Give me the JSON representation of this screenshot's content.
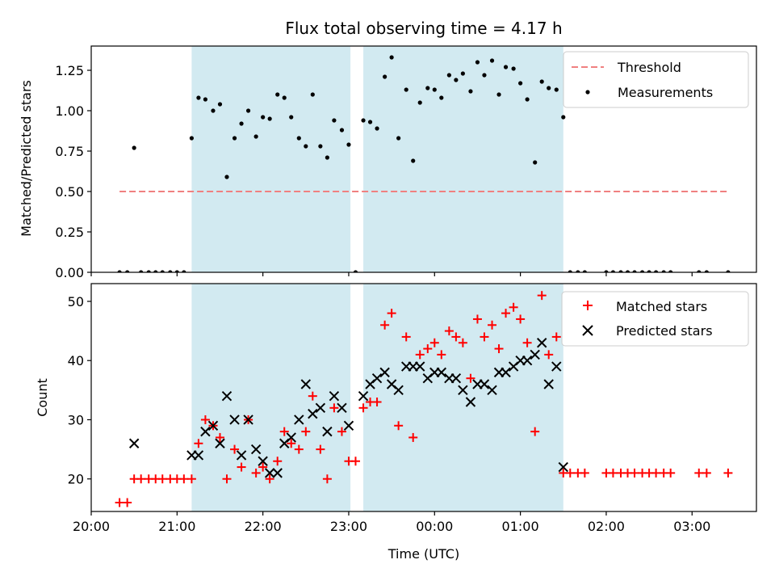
{
  "chart_data": [
    {
      "type": "scatter",
      "title": "Flux total observing time = 4.17 h",
      "xlabel": "",
      "ylabel": "Matched/Predicted stars",
      "ylim": [
        0,
        1.4
      ],
      "y_ticks": [
        "0.00",
        "0.25",
        "0.50",
        "0.75",
        "1.00",
        "1.25"
      ],
      "y_tick_values": [
        0,
        0.25,
        0.5,
        0.75,
        1.0,
        1.25
      ],
      "legend_position": "top-right",
      "series": [
        {
          "name": "Measurements",
          "marker": "dot",
          "color": "#000000",
          "points": [
            [
              20.33,
              0
            ],
            [
              20.42,
              0
            ],
            [
              20.5,
              0.77
            ],
            [
              20.58,
              0
            ],
            [
              20.67,
              0
            ],
            [
              20.75,
              0
            ],
            [
              20.83,
              0
            ],
            [
              20.92,
              0
            ],
            [
              21.0,
              0
            ],
            [
              21.08,
              0
            ],
            [
              21.17,
              0.83
            ],
            [
              21.25,
              1.08
            ],
            [
              21.33,
              1.07
            ],
            [
              21.42,
              1.0
            ],
            [
              21.5,
              1.04
            ],
            [
              21.58,
              0.59
            ],
            [
              21.67,
              0.83
            ],
            [
              21.75,
              0.92
            ],
            [
              21.83,
              1.0
            ],
            [
              21.92,
              0.84
            ],
            [
              22.0,
              0.96
            ],
            [
              22.08,
              0.95
            ],
            [
              22.17,
              1.1
            ],
            [
              22.25,
              1.08
            ],
            [
              22.33,
              0.96
            ],
            [
              22.42,
              0.83
            ],
            [
              22.5,
              0.78
            ],
            [
              22.58,
              1.1
            ],
            [
              22.67,
              0.78
            ],
            [
              22.75,
              0.71
            ],
            [
              22.83,
              0.94
            ],
            [
              22.92,
              0.88
            ],
            [
              23.0,
              0.79
            ],
            [
              23.08,
              0
            ],
            [
              23.17,
              0.94
            ],
            [
              23.25,
              0.93
            ],
            [
              23.33,
              0.89
            ],
            [
              23.42,
              1.21
            ],
            [
              23.5,
              1.33
            ],
            [
              23.58,
              0.83
            ],
            [
              23.67,
              1.13
            ],
            [
              23.75,
              0.69
            ],
            [
              23.83,
              1.05
            ],
            [
              23.92,
              1.14
            ],
            [
              24.0,
              1.13
            ],
            [
              24.08,
              1.08
            ],
            [
              24.17,
              1.22
            ],
            [
              24.25,
              1.19
            ],
            [
              24.33,
              1.23
            ],
            [
              24.42,
              1.12
            ],
            [
              24.5,
              1.3
            ],
            [
              24.58,
              1.22
            ],
            [
              24.67,
              1.31
            ],
            [
              24.75,
              1.1
            ],
            [
              24.83,
              1.27
            ],
            [
              24.92,
              1.26
            ],
            [
              25.0,
              1.17
            ],
            [
              25.08,
              1.07
            ],
            [
              25.17,
              0.68
            ],
            [
              25.25,
              1.18
            ],
            [
              25.33,
              1.14
            ],
            [
              25.42,
              1.13
            ],
            [
              25.5,
              0.96
            ],
            [
              25.58,
              0
            ],
            [
              25.67,
              0
            ],
            [
              25.75,
              0
            ],
            [
              26.0,
              0
            ],
            [
              26.08,
              0
            ],
            [
              26.17,
              0
            ],
            [
              26.25,
              0
            ],
            [
              26.33,
              0
            ],
            [
              26.42,
              0
            ],
            [
              26.5,
              0
            ],
            [
              26.58,
              0
            ],
            [
              26.67,
              0
            ],
            [
              26.75,
              0
            ],
            [
              27.08,
              0
            ],
            [
              27.17,
              0
            ],
            [
              27.42,
              0
            ]
          ]
        },
        {
          "name": "Threshold",
          "marker": "dashed-line",
          "color": "#f08080",
          "points": [
            [
              20.33,
              0.5
            ],
            [
              27.42,
              0.5
            ]
          ]
        }
      ]
    },
    {
      "type": "scatter",
      "title": "",
      "xlabel": "Time (UTC)",
      "ylabel": "Count",
      "ylim": [
        14.5,
        53
      ],
      "y_ticks": [
        "20",
        "30",
        "40",
        "50"
      ],
      "y_tick_values": [
        20,
        30,
        40,
        50
      ],
      "legend_position": "top-right",
      "series": [
        {
          "name": "Matched stars",
          "marker": "plus",
          "color": "#ff0000",
          "points": [
            [
              20.33,
              16
            ],
            [
              20.42,
              16
            ],
            [
              20.5,
              20
            ],
            [
              20.58,
              20
            ],
            [
              20.67,
              20
            ],
            [
              20.75,
              20
            ],
            [
              20.83,
              20
            ],
            [
              20.92,
              20
            ],
            [
              21.0,
              20
            ],
            [
              21.08,
              20
            ],
            [
              21.17,
              20
            ],
            [
              21.25,
              26
            ],
            [
              21.33,
              30
            ],
            [
              21.42,
              29
            ],
            [
              21.5,
              27
            ],
            [
              21.58,
              20
            ],
            [
              21.67,
              25
            ],
            [
              21.75,
              22
            ],
            [
              21.83,
              30
            ],
            [
              21.92,
              21
            ],
            [
              22.0,
              22
            ],
            [
              22.08,
              20
            ],
            [
              22.17,
              23
            ],
            [
              22.25,
              28
            ],
            [
              22.33,
              26
            ],
            [
              22.42,
              25
            ],
            [
              22.5,
              28
            ],
            [
              22.58,
              34
            ],
            [
              22.67,
              25
            ],
            [
              22.75,
              20
            ],
            [
              22.83,
              32
            ],
            [
              22.92,
              28
            ],
            [
              23.0,
              23
            ],
            [
              23.08,
              23
            ],
            [
              23.17,
              32
            ],
            [
              23.25,
              33
            ],
            [
              23.33,
              33
            ],
            [
              23.42,
              46
            ],
            [
              23.5,
              48
            ],
            [
              23.58,
              29
            ],
            [
              23.67,
              44
            ],
            [
              23.75,
              27
            ],
            [
              23.83,
              41
            ],
            [
              23.92,
              42
            ],
            [
              24.0,
              43
            ],
            [
              24.08,
              41
            ],
            [
              24.17,
              45
            ],
            [
              24.25,
              44
            ],
            [
              24.33,
              43
            ],
            [
              24.42,
              37
            ],
            [
              24.5,
              47
            ],
            [
              24.58,
              44
            ],
            [
              24.67,
              46
            ],
            [
              24.75,
              42
            ],
            [
              24.83,
              48
            ],
            [
              24.92,
              49
            ],
            [
              25.0,
              47
            ],
            [
              25.08,
              43
            ],
            [
              25.17,
              28
            ],
            [
              25.25,
              51
            ],
            [
              25.33,
              41
            ],
            [
              25.42,
              44
            ],
            [
              25.5,
              21
            ],
            [
              25.58,
              21
            ],
            [
              25.67,
              21
            ],
            [
              25.75,
              21
            ],
            [
              26.0,
              21
            ],
            [
              26.08,
              21
            ],
            [
              26.17,
              21
            ],
            [
              26.25,
              21
            ],
            [
              26.33,
              21
            ],
            [
              26.42,
              21
            ],
            [
              26.5,
              21
            ],
            [
              26.58,
              21
            ],
            [
              26.67,
              21
            ],
            [
              26.75,
              21
            ],
            [
              27.08,
              21
            ],
            [
              27.17,
              21
            ],
            [
              27.42,
              21
            ]
          ]
        },
        {
          "name": "Predicted stars",
          "marker": "x",
          "color": "#000000",
          "points": [
            [
              20.5,
              26
            ],
            [
              21.17,
              24
            ],
            [
              21.25,
              24
            ],
            [
              21.33,
              28
            ],
            [
              21.42,
              29
            ],
            [
              21.5,
              26
            ],
            [
              21.58,
              34
            ],
            [
              21.67,
              30
            ],
            [
              21.75,
              24
            ],
            [
              21.83,
              30
            ],
            [
              21.92,
              25
            ],
            [
              22.0,
              23
            ],
            [
              22.08,
              21
            ],
            [
              22.17,
              21
            ],
            [
              22.25,
              26
            ],
            [
              22.33,
              27
            ],
            [
              22.42,
              30
            ],
            [
              22.5,
              36
            ],
            [
              22.58,
              31
            ],
            [
              22.67,
              32
            ],
            [
              22.75,
              28
            ],
            [
              22.83,
              34
            ],
            [
              22.92,
              32
            ],
            [
              23.0,
              29
            ],
            [
              23.17,
              34
            ],
            [
              23.25,
              36
            ],
            [
              23.33,
              37
            ],
            [
              23.42,
              38
            ],
            [
              23.5,
              36
            ],
            [
              23.58,
              35
            ],
            [
              23.67,
              39
            ],
            [
              23.75,
              39
            ],
            [
              23.83,
              39
            ],
            [
              23.92,
              37
            ],
            [
              24.0,
              38
            ],
            [
              24.08,
              38
            ],
            [
              24.17,
              37
            ],
            [
              24.25,
              37
            ],
            [
              24.33,
              35
            ],
            [
              24.42,
              33
            ],
            [
              24.5,
              36
            ],
            [
              24.58,
              36
            ],
            [
              24.67,
              35
            ],
            [
              24.75,
              38
            ],
            [
              24.83,
              38
            ],
            [
              24.92,
              39
            ],
            [
              25.0,
              40
            ],
            [
              25.08,
              40
            ],
            [
              25.17,
              41
            ],
            [
              25.25,
              43
            ],
            [
              25.33,
              36
            ],
            [
              25.42,
              39
            ],
            [
              25.5,
              22
            ]
          ]
        }
      ]
    }
  ],
  "shared_x": {
    "xlim": [
      20.0,
      27.75
    ],
    "tick_labels": [
      "20:00",
      "21:00",
      "22:00",
      "23:00",
      "00:00",
      "01:00",
      "02:00",
      "03:00"
    ],
    "tick_values": [
      20,
      21,
      22,
      23,
      24,
      25,
      26,
      27
    ]
  },
  "shaded_intervals": {
    "color": "#add8e6",
    "ranges": [
      [
        21.17,
        23.02
      ],
      [
        23.17,
        25.5
      ]
    ]
  }
}
